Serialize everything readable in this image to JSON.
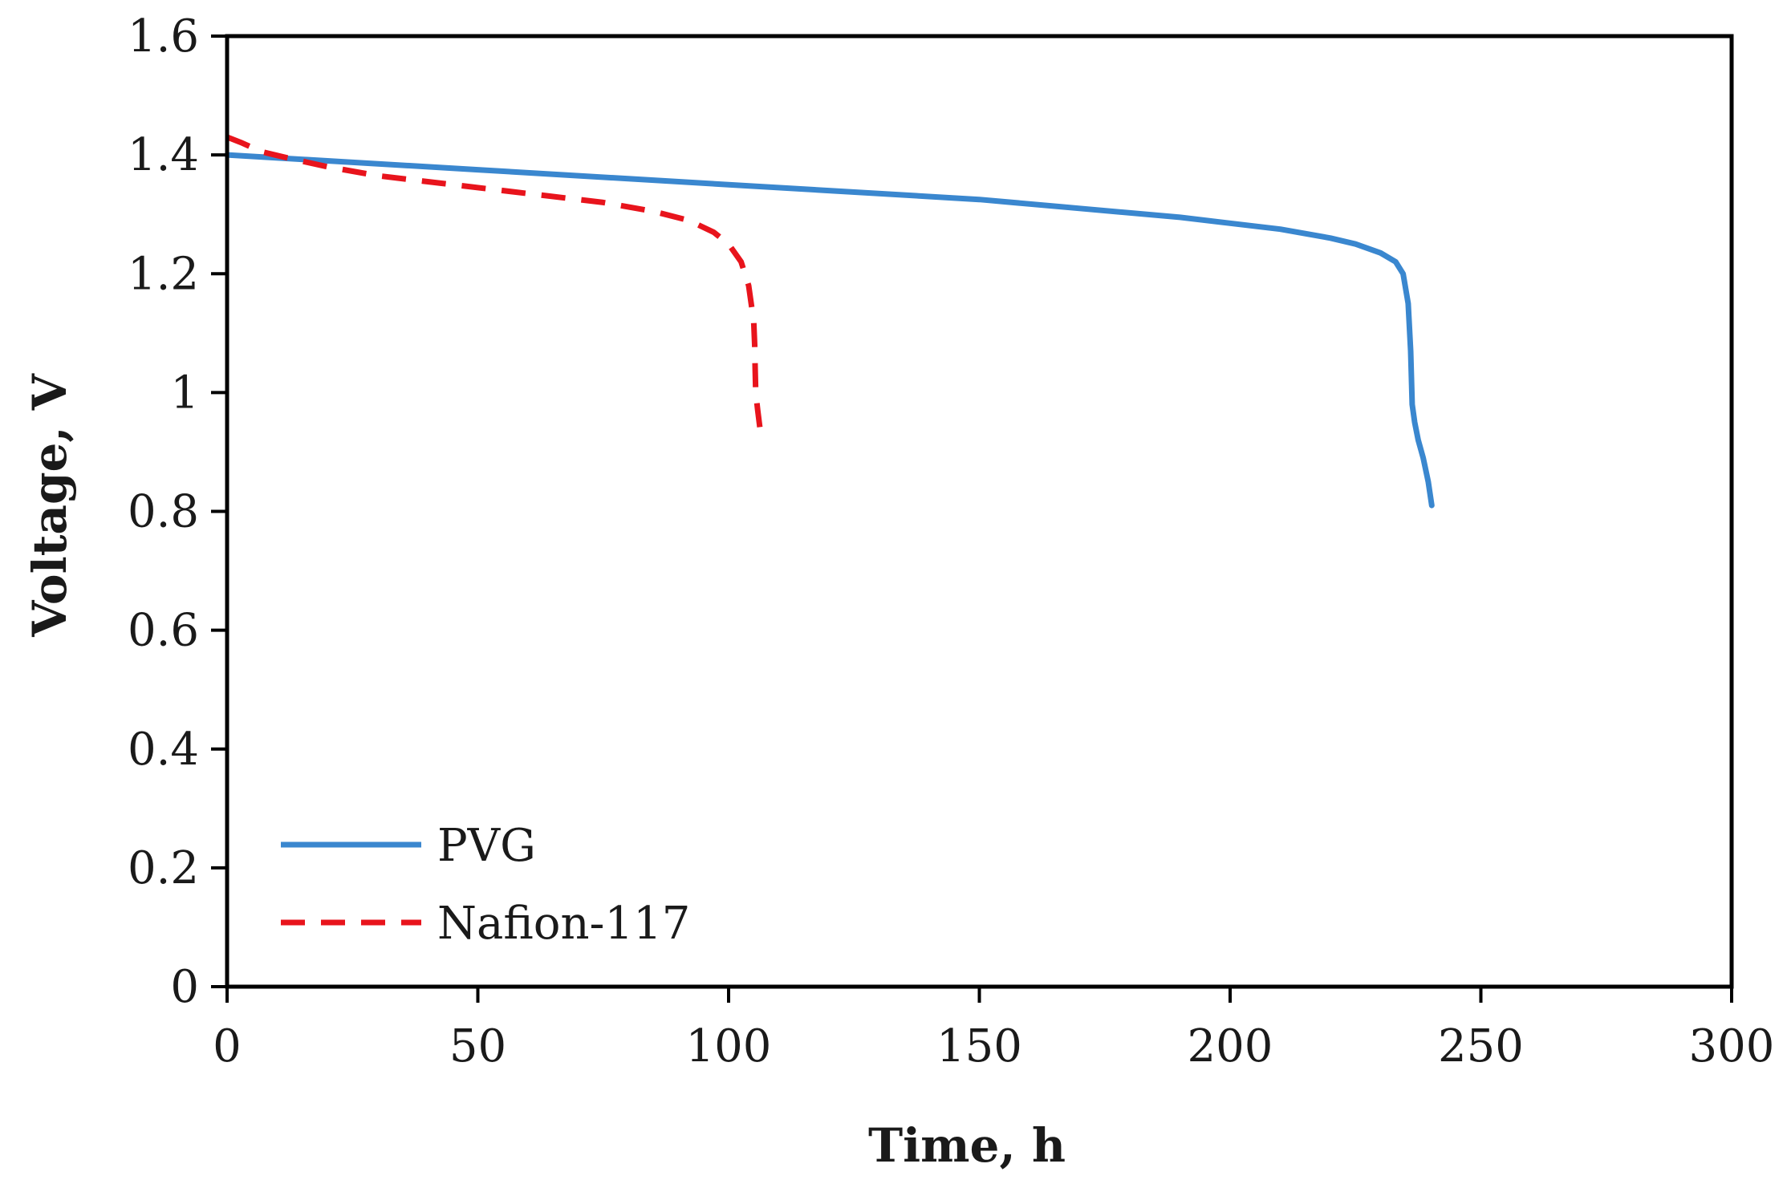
{
  "chart_data": {
    "type": "line",
    "title": "",
    "xlabel": "Time, h",
    "ylabel": "Voltage, V",
    "xlim": [
      0,
      300
    ],
    "ylim": [
      0,
      1.6
    ],
    "x_ticks": [
      0,
      50,
      100,
      150,
      200,
      250,
      300
    ],
    "x_tick_labels": [
      "0",
      "50",
      "100",
      "150",
      "200",
      "250",
      "300"
    ],
    "y_ticks": [
      0,
      0.2,
      0.4,
      0.6,
      0.8,
      1.0,
      1.2,
      1.4,
      1.6
    ],
    "y_tick_labels": [
      "0",
      "0.2",
      "0.4",
      "0.6",
      "0.8",
      "1",
      "1.2",
      "1.4",
      "1.6"
    ],
    "grid": false,
    "legend_position": "bottom-left",
    "series": [
      {
        "name": "PVG",
        "color": "#3a87cf",
        "style": "solid",
        "x": [
          0,
          20,
          50,
          80,
          100,
          120,
          150,
          170,
          190,
          200,
          210,
          220,
          225,
          230,
          233,
          234.5,
          235.5,
          236,
          236.3,
          236.8,
          237.5,
          238.5,
          239.5,
          240.2
        ],
        "y": [
          1.4,
          1.39,
          1.375,
          1.36,
          1.35,
          1.34,
          1.325,
          1.31,
          1.295,
          1.285,
          1.275,
          1.26,
          1.25,
          1.235,
          1.22,
          1.2,
          1.15,
          1.07,
          0.98,
          0.95,
          0.92,
          0.89,
          0.85,
          0.81
        ]
      },
      {
        "name": "Nafion-117",
        "color": "#e8141c",
        "style": "dashed",
        "x": [
          0,
          3,
          7,
          12,
          20,
          30,
          45,
          60,
          75,
          85,
          92,
          97,
          100,
          102.5,
          104,
          105,
          105.2,
          105.3,
          105.4,
          105.8,
          106.4
        ],
        "y": [
          1.43,
          1.42,
          1.405,
          1.395,
          1.38,
          1.365,
          1.35,
          1.335,
          1.32,
          1.305,
          1.29,
          1.27,
          1.25,
          1.22,
          1.18,
          1.12,
          1.08,
          1.04,
          1.0,
          0.97,
          0.93
        ]
      }
    ]
  }
}
